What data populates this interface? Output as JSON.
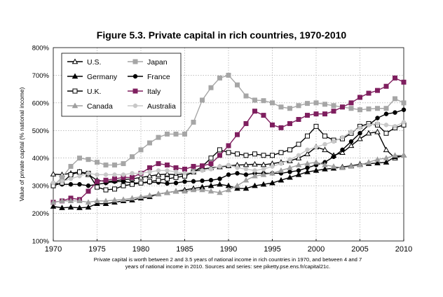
{
  "chart_data": {
    "type": "line",
    "title": "Figure 5.3. Private capital in rich countries, 1970-2010",
    "ylabel": "Value of private capital (% national income)",
    "xlabel": "",
    "xlim": [
      1970,
      2010
    ],
    "ylim": [
      100,
      800
    ],
    "x_ticks": [
      1970,
      1975,
      1980,
      1985,
      1990,
      1995,
      2000,
      2005,
      2010
    ],
    "x_tick_labels": [
      "1970",
      "1975",
      "1980",
      "1985",
      "1990",
      "1995",
      "2000",
      "2005",
      "2010"
    ],
    "y_ticks": [
      100,
      200,
      300,
      400,
      500,
      600,
      700,
      800
    ],
    "y_tick_labels": [
      "100%",
      "200%",
      "300%",
      "400%",
      "500%",
      "600%",
      "700%",
      "800%"
    ],
    "grid": "dotted",
    "legend_placement": "top-left",
    "x": [
      1970,
      1971,
      1972,
      1973,
      1974,
      1975,
      1976,
      1977,
      1978,
      1979,
      1980,
      1981,
      1982,
      1983,
      1984,
      1985,
      1986,
      1987,
      1988,
      1989,
      1990,
      1991,
      1992,
      1993,
      1994,
      1995,
      1996,
      1997,
      1998,
      1999,
      2000,
      2001,
      2002,
      2003,
      2004,
      2005,
      2006,
      2007,
      2008,
      2009,
      2010
    ],
    "series": [
      {
        "name": "U.S.",
        "marker": "triangle-open",
        "color": "#000000",
        "values": [
          342,
          340,
          345,
          350,
          340,
          320,
          315,
          318,
          322,
          325,
          330,
          335,
          340,
          342,
          340,
          343,
          350,
          360,
          365,
          368,
          372,
          375,
          376,
          378,
          376,
          380,
          385,
          390,
          400,
          415,
          440,
          430,
          410,
          420,
          445,
          470,
          490,
          495,
          430,
          400,
          410
        ]
      },
      {
        "name": "Japan",
        "marker": "square",
        "color": "#a6a6a6",
        "values": [
          300,
          330,
          370,
          400,
          395,
          385,
          375,
          375,
          380,
          405,
          430,
          455,
          475,
          487,
          487,
          487,
          530,
          610,
          655,
          690,
          700,
          665,
          625,
          610,
          608,
          600,
          585,
          580,
          590,
          598,
          600,
          595,
          590,
          585,
          580,
          575,
          578,
          580,
          580,
          615,
          600
        ]
      },
      {
        "name": "Germany",
        "marker": "triangle",
        "color": "#000000",
        "values": [
          225,
          220,
          222,
          220,
          222,
          235,
          235,
          240,
          245,
          248,
          255,
          260,
          270,
          275,
          280,
          285,
          290,
          295,
          300,
          305,
          300,
          290,
          290,
          300,
          305,
          310,
          320,
          330,
          340,
          350,
          355,
          360,
          363,
          368,
          372,
          378,
          380,
          382,
          385,
          405,
          410
        ]
      },
      {
        "name": "France",
        "marker": "circle",
        "color": "#000000",
        "values": [
          310,
          305,
          305,
          305,
          300,
          305,
          310,
          315,
          315,
          310,
          310,
          312,
          312,
          308,
          310,
          315,
          316,
          318,
          320,
          325,
          340,
          345,
          340,
          345,
          345,
          345,
          345,
          350,
          355,
          365,
          375,
          385,
          405,
          430,
          460,
          490,
          520,
          545,
          560,
          565,
          575
        ]
      },
      {
        "name": "U.K.",
        "marker": "square-open",
        "color": "#000000",
        "values": [
          300,
          310,
          340,
          350,
          345,
          295,
          285,
          288,
          300,
          305,
          310,
          315,
          320,
          325,
          330,
          335,
          350,
          370,
          400,
          430,
          420,
          415,
          410,
          415,
          410,
          410,
          420,
          430,
          450,
          480,
          515,
          480,
          465,
          470,
          490,
          515,
          525,
          520,
          490,
          510,
          520
        ]
      },
      {
        "name": "Italy",
        "marker": "square",
        "color": "#7f1f5f",
        "values": [
          240,
          245,
          255,
          250,
          280,
          315,
          320,
          325,
          330,
          330,
          345,
          365,
          380,
          375,
          365,
          360,
          370,
          372,
          380,
          410,
          445,
          485,
          525,
          570,
          555,
          520,
          510,
          525,
          540,
          555,
          560,
          560,
          570,
          585,
          600,
          620,
          635,
          645,
          660,
          690,
          675
        ]
      },
      {
        "name": "Canada",
        "marker": "triangle",
        "color": "#9f9f9f",
        "values": [
          240,
          245,
          245,
          245,
          240,
          245,
          245,
          248,
          250,
          255,
          260,
          265,
          270,
          275,
          280,
          280,
          285,
          285,
          280,
          275,
          285,
          300,
          320,
          335,
          340,
          345,
          355,
          365,
          375,
          380,
          385,
          375,
          370,
          365,
          370,
          375,
          385,
          395,
          400,
          410,
          410
        ]
      },
      {
        "name": "Australia",
        "marker": "circle",
        "color": "#c8c8c8",
        "values": [
          310,
          315,
          325,
          335,
          345,
          340,
          340,
          340,
          340,
          345,
          345,
          350,
          355,
          355,
          350,
          345,
          350,
          355,
          360,
          370,
          375,
          365,
          360,
          355,
          360,
          370,
          380,
          395,
          410,
          430,
          440,
          450,
          460,
          475,
          495,
          510,
          520,
          525,
          520,
          515,
          530
        ]
      }
    ]
  },
  "caption": {
    "line1": "Private capital is worth between 2 and 3.5 years of national income in rich countries in 1970, and between 4 and 7",
    "line2": "years of national income in 2010. Sources and series: see piketty.pse.ens.fr/capital21c."
  }
}
